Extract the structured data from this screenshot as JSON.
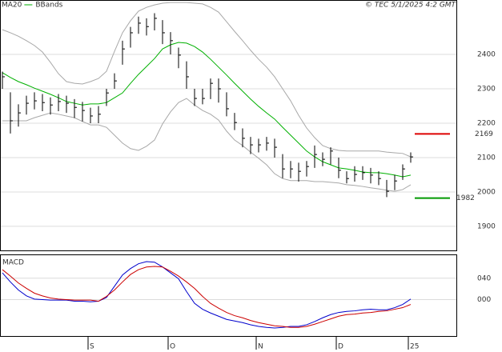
{
  "chart_data": [
    {
      "type": "ohlc",
      "source": "© TEC 5/1/2025 4:2 GMT",
      "categories": [
        null,
        null,
        null,
        null,
        null,
        null,
        null,
        null,
        null,
        null,
        null,
        "S",
        null,
        null,
        null,
        null,
        null,
        null,
        null,
        null,
        null,
        "O",
        null,
        null,
        null,
        null,
        null,
        null,
        null,
        null,
        null,
        null,
        "N",
        null,
        null,
        null,
        null,
        null,
        null,
        null,
        null,
        null,
        "D",
        null,
        null,
        null,
        null,
        null,
        null,
        null,
        null,
        "25"
      ],
      "high": [
        2350,
        2290,
        2255,
        2280,
        2290,
        2285,
        2275,
        2285,
        2280,
        2270,
        2262,
        2245,
        2250,
        2300,
        2345,
        2440,
        2480,
        2510,
        2505,
        2520,
        2500,
        2465,
        2420,
        2380,
        2300,
        2300,
        2330,
        2330,
        2290,
        2230,
        2185,
        2160,
        2155,
        2160,
        2155,
        2110,
        2090,
        2085,
        2090,
        2135,
        2115,
        2130,
        2100,
        2060,
        2075,
        2075,
        2070,
        2060,
        2035,
        2050,
        2080,
        2115
      ],
      "low": [
        2300,
        2170,
        2190,
        2225,
        2240,
        2235,
        2225,
        2235,
        2230,
        2215,
        2205,
        2200,
        2200,
        2250,
        2300,
        2370,
        2420,
        2460,
        2455,
        2470,
        2430,
        2400,
        2360,
        2300,
        2250,
        2255,
        2270,
        2260,
        2220,
        2180,
        2130,
        2110,
        2115,
        2120,
        2100,
        2040,
        2040,
        2030,
        2045,
        2070,
        2075,
        2080,
        2040,
        2025,
        2030,
        2035,
        2025,
        2020,
        1985,
        2005,
        2035,
        2085
      ],
      "close": [
        2335,
        2207,
        2230,
        2258,
        2265,
        2260,
        2253,
        2263,
        2258,
        2246,
        2237,
        2221,
        2226,
        2288,
        2323,
        2416,
        2463,
        2491,
        2481,
        2505,
        2463,
        2440,
        2398,
        2335,
        2272,
        2272,
        2316,
        2300,
        2242,
        2202,
        2156,
        2137,
        2137,
        2142,
        2130,
        2067,
        2067,
        2060,
        2074,
        2109,
        2095,
        2119,
        2063,
        2039,
        2051,
        2056,
        2049,
        2039,
        2002,
        2032,
        2067,
        2102
      ],
      "series": [
        {
          "name": "MA20",
          "color": "#00b000",
          "values": [
            2347,
            2333,
            2321,
            2312,
            2302,
            2293,
            2284,
            2274,
            2263,
            2258,
            2253,
            2256,
            2256,
            2260,
            2274,
            2288,
            2316,
            2342,
            2365,
            2388,
            2416,
            2428,
            2435,
            2433,
            2423,
            2407,
            2386,
            2363,
            2340,
            2316,
            2293,
            2270,
            2249,
            2230,
            2212,
            2188,
            2165,
            2142,
            2119,
            2102,
            2088,
            2079,
            2070,
            2067,
            2063,
            2058,
            2056,
            2056,
            2053,
            2049,
            2044,
            2049
          ]
        },
        {
          "name": "BBands",
          "color": "#a8a8a8",
          "upper": [
            2472,
            2463,
            2453,
            2440,
            2426,
            2407,
            2377,
            2344,
            2321,
            2316,
            2314,
            2321,
            2330,
            2351,
            2409,
            2463,
            2498,
            2526,
            2537,
            2544,
            2549,
            2551,
            2551,
            2551,
            2549,
            2547,
            2537,
            2523,
            2495,
            2467,
            2440,
            2412,
            2386,
            2363,
            2335,
            2300,
            2265,
            2223,
            2186,
            2158,
            2135,
            2126,
            2121,
            2119,
            2119,
            2119,
            2119,
            2119,
            2116,
            2114,
            2112,
            2102
          ],
          "lower": [
            2207,
            2207,
            2207,
            2207,
            2216,
            2223,
            2230,
            2226,
            2221,
            2216,
            2205,
            2195,
            2195,
            2188,
            2165,
            2142,
            2126,
            2121,
            2133,
            2151,
            2198,
            2233,
            2260,
            2272,
            2253,
            2237,
            2226,
            2209,
            2177,
            2151,
            2135,
            2116,
            2098,
            2079,
            2053,
            2039,
            2033,
            2033,
            2033,
            2030,
            2030,
            2028,
            2026,
            2021,
            2019,
            2016,
            2012,
            2009,
            2005,
            2002,
            2007,
            2021
          ]
        }
      ],
      "levels": [
        {
          "value": 2169,
          "color": "#dd0000"
        },
        {
          "value": 1982,
          "color": "#009900"
        }
      ],
      "ylim": [
        1830,
        2556
      ],
      "yticks": [
        1900,
        2000,
        2100,
        2200,
        2300,
        2400
      ],
      "grid": true
    },
    {
      "type": "line",
      "title": "MACD",
      "series": [
        {
          "color": "#0000cc",
          "values": [
            50,
            33,
            18,
            7,
            1,
            0,
            -1,
            -1,
            -1,
            -3,
            -3,
            -4,
            -3,
            4,
            25,
            46,
            58,
            67,
            71,
            70,
            61,
            50,
            39,
            15,
            -7,
            -18,
            -25,
            -31,
            -37,
            -40,
            -43,
            -47,
            -50,
            -52,
            -53,
            -52,
            -50,
            -50,
            -47,
            -41,
            -34,
            -28,
            -24,
            -22,
            -21,
            -19,
            -18,
            -19,
            -19,
            -15,
            -9,
            1
          ]
        },
        {
          "color": "#cc0000",
          "values": [
            56,
            44,
            31,
            21,
            12,
            7,
            3,
            1,
            0,
            -1,
            -1,
            -1,
            -3,
            6,
            18,
            33,
            47,
            56,
            61,
            62,
            61,
            53,
            44,
            33,
            21,
            6,
            -7,
            -16,
            -24,
            -30,
            -34,
            -39,
            -43,
            -46,
            -49,
            -50,
            -52,
            -52,
            -50,
            -46,
            -41,
            -36,
            -31,
            -28,
            -27,
            -25,
            -24,
            -22,
            -21,
            -18,
            -15,
            -9
          ]
        }
      ],
      "ylim": [
        -68,
        83
      ],
      "yticks": [
        {
          "value": 0,
          "label": "000"
        },
        {
          "value": 40,
          "label": "040"
        }
      ],
      "grid": true
    }
  ]
}
